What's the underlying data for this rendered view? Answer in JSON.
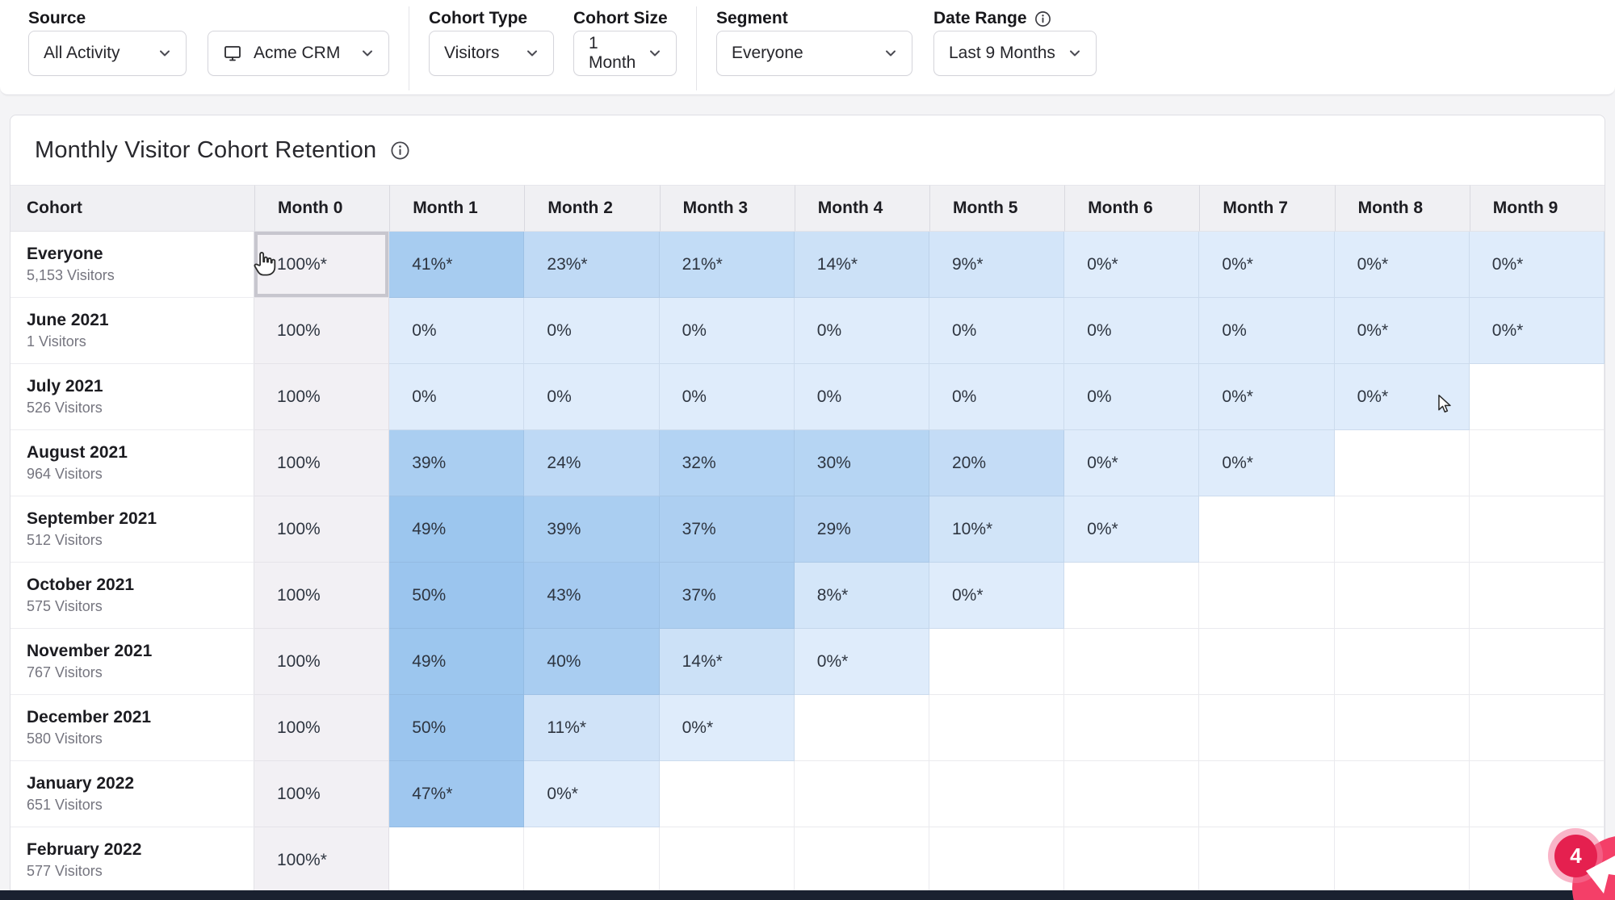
{
  "filters": {
    "source": {
      "label": "Source",
      "primary_value": "All Activity",
      "secondary_value": "Acme CRM"
    },
    "cohort_type": {
      "label": "Cohort Type",
      "value": "Visitors"
    },
    "cohort_size": {
      "label": "Cohort Size",
      "value": "1 Month"
    },
    "segment": {
      "label": "Segment",
      "value": "Everyone"
    },
    "date_range": {
      "label": "Date Range",
      "value": "Last 9 Months"
    }
  },
  "panel": {
    "title": "Monthly Visitor Cohort Retention"
  },
  "chart_data": {
    "type": "heatmap",
    "title": "Monthly Visitor Cohort Retention",
    "columns": [
      "Cohort",
      "Month 0",
      "Month 1",
      "Month 2",
      "Month 3",
      "Month 4",
      "Month 5",
      "Month 6",
      "Month 7",
      "Month 8",
      "Month 9"
    ],
    "rows": [
      {
        "cohort": "Everyone",
        "visitors": "5,153 Visitors",
        "cells": [
          "100%*",
          "41%*",
          "23%*",
          "21%*",
          "14%*",
          "9%*",
          "0%*",
          "0%*",
          "0%*",
          "0%*"
        ]
      },
      {
        "cohort": "June 2021",
        "visitors": "1 Visitors",
        "cells": [
          "100%",
          "0%",
          "0%",
          "0%",
          "0%",
          "0%",
          "0%",
          "0%",
          "0%*",
          "0%*"
        ]
      },
      {
        "cohort": "July 2021",
        "visitors": "526 Visitors",
        "cells": [
          "100%",
          "0%",
          "0%",
          "0%",
          "0%",
          "0%",
          "0%",
          "0%*",
          "0%*",
          ""
        ]
      },
      {
        "cohort": "August 2021",
        "visitors": "964 Visitors",
        "cells": [
          "100%",
          "39%",
          "24%",
          "32%",
          "30%",
          "20%",
          "0%*",
          "0%*",
          "",
          ""
        ]
      },
      {
        "cohort": "September 2021",
        "visitors": "512 Visitors",
        "cells": [
          "100%",
          "49%",
          "39%",
          "37%",
          "29%",
          "10%*",
          "0%*",
          "",
          "",
          ""
        ]
      },
      {
        "cohort": "October 2021",
        "visitors": "575 Visitors",
        "cells": [
          "100%",
          "50%",
          "43%",
          "37%",
          "8%*",
          "0%*",
          "",
          "",
          "",
          ""
        ]
      },
      {
        "cohort": "November 2021",
        "visitors": "767 Visitors",
        "cells": [
          "100%",
          "49%",
          "40%",
          "14%*",
          "0%*",
          "",
          "",
          "",
          "",
          ""
        ]
      },
      {
        "cohort": "December 2021",
        "visitors": "580 Visitors",
        "cells": [
          "100%",
          "50%",
          "11%*",
          "0%*",
          "",
          "",
          "",
          "",
          "",
          ""
        ]
      },
      {
        "cohort": "January 2022",
        "visitors": "651 Visitors",
        "cells": [
          "100%",
          "47%*",
          "0%*",
          "",
          "",
          "",
          "",
          "",
          "",
          ""
        ]
      },
      {
        "cohort": "February 2022",
        "visitors": "577 Visitors",
        "cells": [
          "100%*",
          "",
          "",
          "",
          "",
          "",
          "",
          "",
          "",
          ""
        ]
      }
    ],
    "hovered_cell": {
      "row_index": 0,
      "col_index": 0
    },
    "color_scale": {
      "zero_color": "#dfecfb",
      "max_color": "#9bc5ee",
      "domain": [
        0,
        50
      ],
      "month0_color": "#f2f0f4"
    }
  },
  "chat_widget": {
    "badge_count": "4",
    "launcher_color": "#f43f68",
    "badge_color": "#e5204f",
    "ring_color": "rgba(244,120,155,0.55)"
  },
  "colors": {
    "bottom_strip": "#1a2130"
  }
}
